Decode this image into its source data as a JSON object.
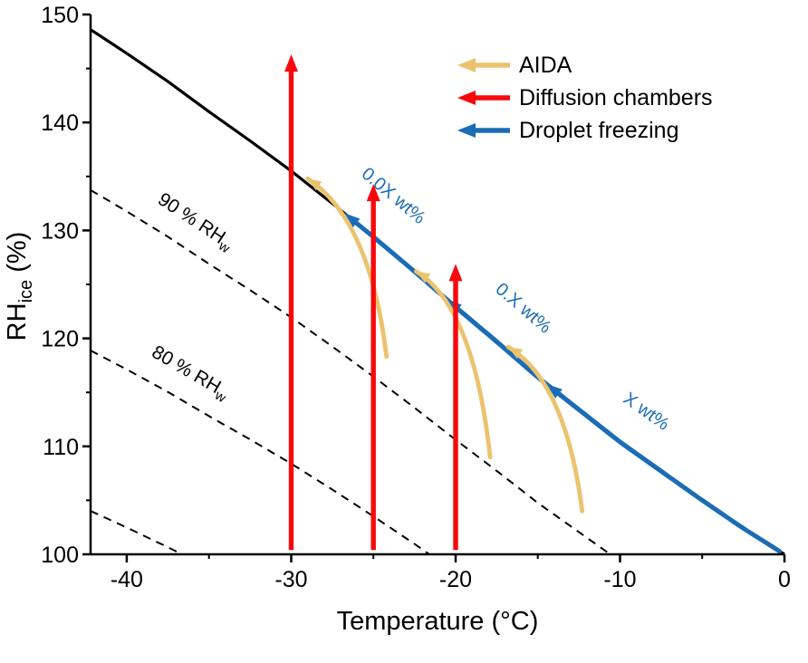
{
  "chart_data": {
    "type": "line",
    "title": "",
    "xlabel": "Temperature (°C)",
    "ylabel": {
      "main": "RH",
      "sub": "ice",
      "unit": " (%)"
    },
    "xlim": [
      -42.2,
      0
    ],
    "ylim": [
      100,
      150
    ],
    "x_ticks": [
      -40,
      -30,
      -20,
      -10,
      0
    ],
    "x_minor_ticks": [
      -35,
      -25,
      -15,
      -5
    ],
    "y_ticks": [
      100,
      110,
      120,
      130,
      140,
      150
    ],
    "y_minor_ticks": [
      105,
      115,
      125,
      135,
      145
    ],
    "grid": false,
    "legend_position": "top-right-inside",
    "water_saturation_line": {
      "name": "water saturation (RHw = 100 %)",
      "color": "#000000",
      "points": [
        [
          -42.2,
          148.6
        ],
        [
          -40,
          146.4
        ],
        [
          -37.5,
          143.8
        ],
        [
          -35,
          141.0
        ],
        [
          -32.5,
          138.3
        ],
        [
          -30,
          135.5
        ],
        [
          -27.5,
          132.5
        ],
        [
          -25,
          129.4
        ],
        [
          -22.5,
          126.2
        ],
        [
          -20,
          122.9
        ],
        [
          -17.5,
          119.7
        ],
        [
          -15,
          116.4
        ],
        [
          -12.5,
          113.4
        ],
        [
          -10,
          110.4
        ],
        [
          -7.5,
          107.7
        ],
        [
          -5,
          105.0
        ],
        [
          -2.5,
          102.4
        ],
        [
          0,
          100.0
        ]
      ]
    },
    "rh_w_lines": [
      {
        "fraction": 0.9,
        "label": {
          "text": "90 % RH",
          "sub": "w"
        },
        "label_pos": {
          "t": -36.0,
          "rh": 130.4
        }
      },
      {
        "fraction": 0.8,
        "label": {
          "text": "80 % RH",
          "sub": "w"
        },
        "label_pos": {
          "t": -36.3,
          "rh": 116.4
        }
      },
      {
        "fraction": 0.7,
        "label": null,
        "label_pos": null
      }
    ],
    "diffusion_chamber_arrows": {
      "color": "#f7090b",
      "items": [
        {
          "t": -30,
          "rh_start": 100.4,
          "rh_end": 146.3
        },
        {
          "t": -25,
          "rh_start": 100.4,
          "rh_end": 134.3
        },
        {
          "t": -20,
          "rh_start": 100.4,
          "rh_end": 126.9
        }
      ]
    },
    "aida_arrows": {
      "color": "#ebc36e",
      "items": [
        {
          "start": [
            -24.2,
            118.3
          ],
          "control": [
            -25.2,
            131.0
          ],
          "end": [
            -29.0,
            134.8
          ]
        },
        {
          "start": [
            -17.9,
            109.0
          ],
          "control": [
            -18.9,
            123.0
          ],
          "end": [
            -22.4,
            126.2
          ]
        },
        {
          "start": [
            -12.3,
            104.0
          ],
          "control": [
            -13.3,
            116.0
          ],
          "end": [
            -16.8,
            119.2
          ]
        }
      ]
    },
    "droplet_freezing_arrows": {
      "color": "#1a6cb5",
      "items": [
        {
          "t_tail": -13.6,
          "t_head": -26.8,
          "label": "0.0X wt%",
          "label_pos": {
            "t": -24.0,
            "rh": 132.8
          }
        },
        {
          "t_tail": -7.2,
          "t_head": -20.6,
          "label": "0.X wt%",
          "label_pos": {
            "t": -16.1,
            "rh": 122.4
          }
        },
        {
          "t_tail": -0.3,
          "t_head": -14.5,
          "label": "X wt%",
          "label_pos": {
            "t": -8.6,
            "rh": 112.8
          }
        }
      ]
    },
    "legend": {
      "entries": [
        {
          "label": "AIDA",
          "color": "#ebc36e"
        },
        {
          "label": "Diffusion chambers",
          "color": "#f7090b"
        },
        {
          "label": "Droplet freezing",
          "color": "#1a6cb5"
        }
      ]
    }
  }
}
